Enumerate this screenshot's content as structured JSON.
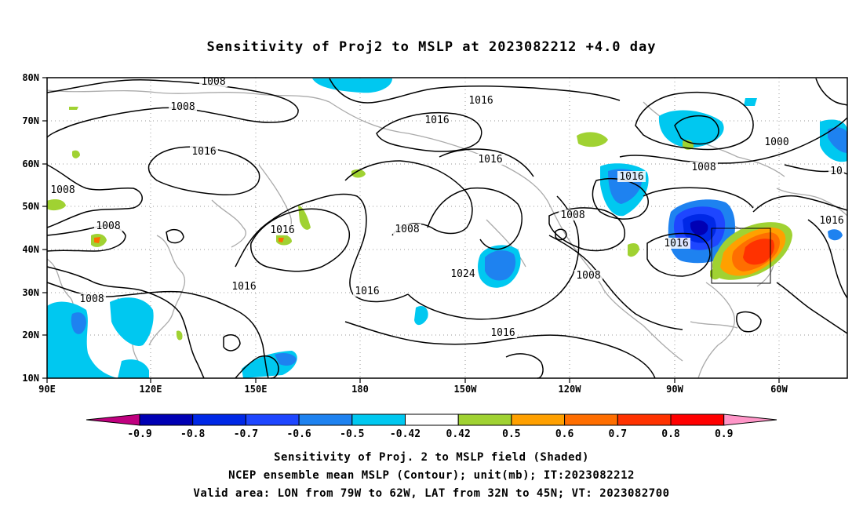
{
  "title": "Sensitivity of Proj2 to MSLP at 2023082212 +4.0 day",
  "footer": {
    "line1": "Sensitivity of Proj. 2 to MSLP field (Shaded)",
    "line2": "NCEP ensemble mean MSLP (Contour); unit(mb); IT:2023082212",
    "line3": "Valid area: LON from 79W to 62W, LAT from 32N to 45N; VT: 2023082700"
  },
  "axes": {
    "lon_ticks": [
      "90E",
      "120E",
      "150E",
      "180",
      "150W",
      "120W",
      "90W",
      "60W"
    ],
    "lat_ticks": [
      "80N",
      "70N",
      "60N",
      "50N",
      "40N",
      "30N",
      "20N",
      "10N"
    ]
  },
  "colorbar": {
    "labels": [
      "-0.9",
      "-0.8",
      "-0.7",
      "-0.6",
      "-0.5",
      "-0.42",
      "0.42",
      "0.5",
      "0.6",
      "0.7",
      "0.8",
      "0.9"
    ],
    "colors": [
      "#c0007f",
      "#0000b4",
      "#0028e6",
      "#1e46ff",
      "#1e82f0",
      "#00c8f0",
      "#ffffff",
      "#a0d232",
      "#ffa000",
      "#ff6e00",
      "#ff3200",
      "#ff0000",
      "#ff96c8"
    ]
  },
  "contour_labels": [
    "1008",
    "1008",
    "1016",
    "1008",
    "1016",
    "1016",
    "1000",
    "1008",
    "1016",
    "1008",
    "1008",
    "1016",
    "1008",
    "1016",
    "1024",
    "1016",
    "1008",
    "1016",
    "1016",
    "1016",
    "1008",
    "1016",
    "10"
  ],
  "valid_box": {
    "lon_min": -79,
    "lon_max": -62,
    "lat_min": 32,
    "lat_max": 45
  }
}
